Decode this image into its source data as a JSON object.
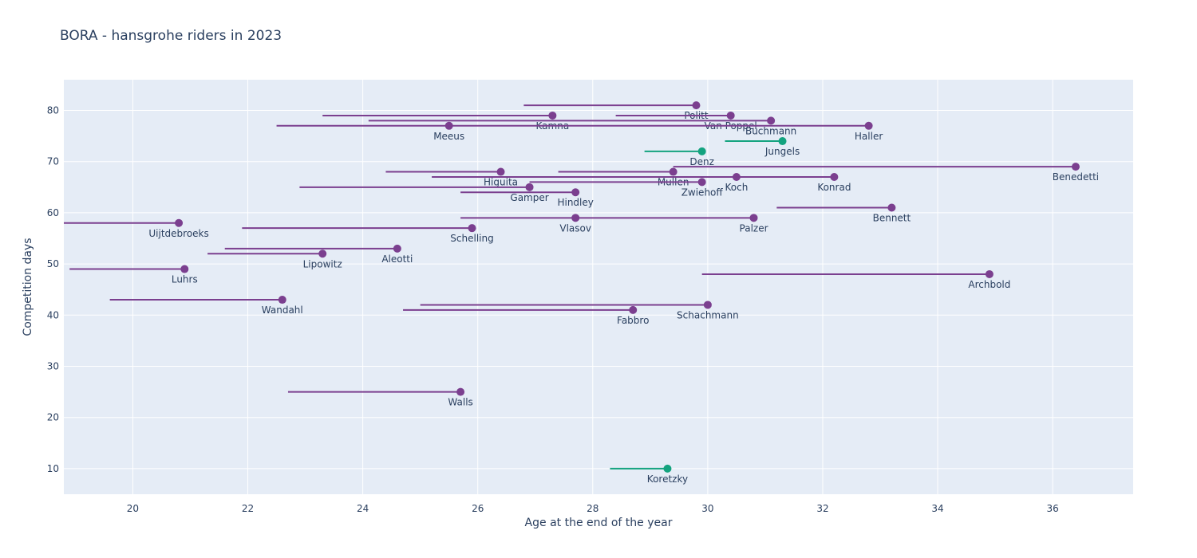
{
  "chart_data": {
    "type": "scatter",
    "title": "BORA - hansgrohe riders in 2023",
    "xlabel": "Age at the end of the year",
    "ylabel": "Competition days",
    "xlim": [
      18.8,
      37.4
    ],
    "ylim": [
      5,
      86
    ],
    "x_ticks": [
      20,
      22,
      24,
      26,
      28,
      30,
      32,
      34,
      36
    ],
    "y_ticks": [
      10,
      20,
      30,
      40,
      50,
      60,
      70,
      80
    ],
    "grid": true,
    "colors": {
      "purple": "#7b3f8f",
      "green": "#14a37f",
      "plot_bg": "#e5ecf6"
    },
    "riders": [
      {
        "name": "Politt",
        "age": 29.8,
        "days": 81,
        "start": 26.8,
        "color": "purple"
      },
      {
        "name": "Kamna",
        "age": 27.3,
        "days": 79,
        "start": 23.3,
        "color": "purple"
      },
      {
        "name": "Van Poppel",
        "age": 30.4,
        "days": 79,
        "start": 28.4,
        "color": "purple"
      },
      {
        "name": "Buchmann",
        "age": 31.1,
        "days": 78,
        "start": 24.1,
        "color": "purple"
      },
      {
        "name": "Meeus",
        "age": 25.5,
        "days": 77,
        "start": 22.5,
        "color": "purple"
      },
      {
        "name": "Haller",
        "age": 32.8,
        "days": 77,
        "start": 25.5,
        "color": "purple"
      },
      {
        "name": "Jungels",
        "age": 31.3,
        "days": 74,
        "start": 30.3,
        "color": "green"
      },
      {
        "name": "Denz",
        "age": 29.9,
        "days": 72,
        "start": 28.9,
        "color": "green"
      },
      {
        "name": "Benedetti",
        "age": 36.4,
        "days": 69,
        "start": 29.4,
        "color": "purple"
      },
      {
        "name": "Higuita",
        "age": 26.4,
        "days": 68,
        "start": 24.4,
        "color": "purple"
      },
      {
        "name": "Mullen",
        "age": 29.4,
        "days": 68,
        "start": 27.4,
        "color": "purple"
      },
      {
        "name": "Koch",
        "age": 30.5,
        "days": 67,
        "start": 25.2,
        "color": "purple"
      },
      {
        "name": "Konrad",
        "age": 32.2,
        "days": 67,
        "start": 30.5,
        "color": "purple"
      },
      {
        "name": "Zwiehoff",
        "age": 29.9,
        "days": 66,
        "start": 26.9,
        "color": "purple"
      },
      {
        "name": "Gamper",
        "age": 26.9,
        "days": 65,
        "start": 22.9,
        "color": "purple"
      },
      {
        "name": "Hindley",
        "age": 27.7,
        "days": 64,
        "start": 25.7,
        "color": "purple"
      },
      {
        "name": "Bennett",
        "age": 33.2,
        "days": 61,
        "start": 31.2,
        "color": "purple"
      },
      {
        "name": "Vlasov",
        "age": 27.7,
        "days": 59,
        "start": 25.7,
        "color": "purple"
      },
      {
        "name": "Palzer",
        "age": 30.8,
        "days": 59,
        "start": 27.7,
        "color": "purple"
      },
      {
        "name": "Uijtdebroeks",
        "age": 20.8,
        "days": 58,
        "start": 18.8,
        "color": "purple"
      },
      {
        "name": "Schelling",
        "age": 25.9,
        "days": 57,
        "start": 21.9,
        "color": "purple"
      },
      {
        "name": "Aleotti",
        "age": 24.6,
        "days": 53,
        "start": 21.6,
        "color": "purple"
      },
      {
        "name": "Lipowitz",
        "age": 23.3,
        "days": 52,
        "start": 21.3,
        "color": "purple"
      },
      {
        "name": "Luhrs",
        "age": 20.9,
        "days": 49,
        "start": 18.9,
        "color": "purple"
      },
      {
        "name": "Archbold",
        "age": 34.9,
        "days": 48,
        "start": 29.9,
        "color": "purple"
      },
      {
        "name": "Wandahl",
        "age": 22.6,
        "days": 43,
        "start": 19.6,
        "color": "purple"
      },
      {
        "name": "Schachmann",
        "age": 30.0,
        "days": 42,
        "start": 25.0,
        "color": "purple"
      },
      {
        "name": "Fabbro",
        "age": 28.7,
        "days": 41,
        "start": 24.7,
        "color": "purple"
      },
      {
        "name": "Walls",
        "age": 25.7,
        "days": 25,
        "start": 22.7,
        "color": "purple"
      },
      {
        "name": "Koretzky",
        "age": 29.3,
        "days": 10,
        "start": 28.3,
        "color": "green"
      }
    ]
  }
}
